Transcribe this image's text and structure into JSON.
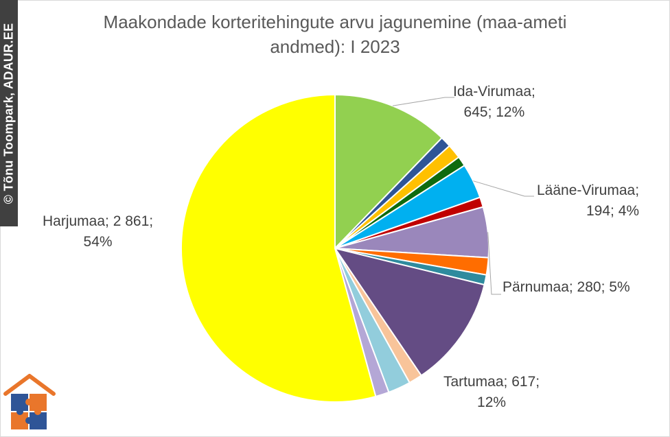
{
  "watermark": {
    "text": "© Tõnu Toompark, ADAUR.EE"
  },
  "chart_data": {
    "type": "pie",
    "title": "Maakondade korteritehingute arvu jagunemine (maa-ameti andmed): I 2023",
    "title_lines": [
      "Maakondade korteritehingute arvu jagunemine (maa-ameti",
      "andmed): I 2023"
    ],
    "start_angle_deg": 90,
    "direction": "clockwise",
    "slices": [
      {
        "label": "Ida-Virumaa",
        "value": 645,
        "percent": 12,
        "color": "#92d050"
      },
      {
        "label": "",
        "value": 60,
        "percent": 1,
        "color": "#2f5597"
      },
      {
        "label": "",
        "value": 80,
        "percent": 1.5,
        "color": "#ffc000"
      },
      {
        "label": "",
        "value": 55,
        "percent": 1,
        "color": "#0e6b0e"
      },
      {
        "label": "Lääne-Virumaa",
        "value": 194,
        "percent": 4,
        "color": "#00b0f0"
      },
      {
        "label": "",
        "value": 55,
        "percent": 1,
        "color": "#c00000"
      },
      {
        "label": "Pärnumaa",
        "value": 280,
        "percent": 5,
        "color": "#9a87bb"
      },
      {
        "label": "",
        "value": 95,
        "percent": 2,
        "color": "#ff6d00"
      },
      {
        "label": "",
        "value": 55,
        "percent": 1,
        "color": "#2e8b9e"
      },
      {
        "label": "Tartumaa",
        "value": 617,
        "percent": 12,
        "color": "#644c84"
      },
      {
        "label": "",
        "value": 75,
        "percent": 1.5,
        "color": "#f8c49a"
      },
      {
        "label": "",
        "value": 125,
        "percent": 2.5,
        "color": "#92cddc"
      },
      {
        "label": "",
        "value": 75,
        "percent": 1.5,
        "color": "#b4a7d6"
      },
      {
        "label": "Harjumaa",
        "value": 2861,
        "percent": 54,
        "color": "#ffff00"
      }
    ],
    "data_labels": [
      {
        "slice": "Ida-Virumaa",
        "line1": "Ida-Virumaa;",
        "line2": "645; 12%"
      },
      {
        "slice": "Lääne-Virumaa",
        "line1": "Lääne-Virumaa;",
        "line2": "194; 4%"
      },
      {
        "slice": "Pärnumaa",
        "line1": "Pärnumaa; 280; 5%",
        "line2": ""
      },
      {
        "slice": "Tartumaa",
        "line1": "Tartumaa; 617;",
        "line2": "12%"
      },
      {
        "slice": "Harjumaa",
        "line1": "Harjumaa; 2 861;",
        "line2": "54%"
      }
    ]
  }
}
